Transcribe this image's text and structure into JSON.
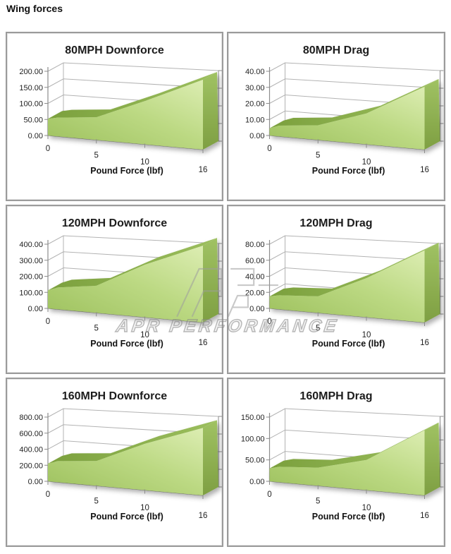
{
  "page": {
    "title": "Wing forces"
  },
  "watermark": {
    "text": "APR PERFORMANCE"
  },
  "colors": {
    "area_light": "#dcedb2",
    "area_mid": "#bcd983",
    "area_dark": "#9cc05c",
    "ridge_dark": "#7ba03d",
    "ridge_light": "#9cbf5e",
    "cap_top": "#a0c263",
    "cap_bottom": "#7e9f42",
    "grid_gray": "#b3b3b3",
    "axis_gray": "#8c8c8c",
    "text": "#1f1f1f",
    "panel_border": "#9b9b9b",
    "watermark_gray": "#9e9e9e"
  },
  "chart_data": [
    {
      "type": "area",
      "title": "80MPH Downforce",
      "xlabel": "Pound Force (lbf)",
      "x": [
        0,
        1,
        5,
        10,
        16
      ],
      "values": [
        52,
        57,
        62,
        105,
        150
      ],
      "xlim": [
        0,
        16
      ],
      "ylim": [
        0,
        200
      ],
      "ystep": 50,
      "xticks": [
        0,
        5,
        10,
        16
      ],
      "xtick_labels": [
        "0",
        "5",
        "10",
        "16"
      ],
      "ytick_labels": [
        "0.00",
        "50.00",
        "100.00",
        "150.00",
        "200.00"
      ],
      "grid": true,
      "legend": false
    },
    {
      "type": "area",
      "title": "80MPH Drag",
      "xlabel": "Pound Force (lbf)",
      "x": [
        0,
        1,
        5,
        10,
        16
      ],
      "values": [
        4.5,
        6.5,
        8,
        15,
        27
      ],
      "xlim": [
        0,
        16
      ],
      "ylim": [
        0,
        40
      ],
      "ystep": 10,
      "xticks": [
        0,
        5,
        10,
        16
      ],
      "xtick_labels": [
        "0",
        "5",
        "10",
        "16"
      ],
      "ytick_labels": [
        "0.00",
        "10.00",
        "20.00",
        "30.00",
        "40.00"
      ],
      "grid": true,
      "legend": false
    },
    {
      "type": "area",
      "title": "120MPH Downforce",
      "xlabel": "Pound Force (lbf)",
      "x": [
        0,
        1,
        5,
        10,
        16
      ],
      "values": [
        112,
        132,
        148,
        255,
        330
      ],
      "xlim": [
        0,
        16
      ],
      "ylim": [
        0,
        400
      ],
      "ystep": 100,
      "xticks": [
        0,
        5,
        10,
        16
      ],
      "xtick_labels": [
        "0",
        "5",
        "10",
        "16"
      ],
      "ytick_labels": [
        "0.00",
        "100.00",
        "200.00",
        "300.00",
        "400.00"
      ],
      "grid": true,
      "legend": false
    },
    {
      "type": "area",
      "title": "120MPH Drag",
      "xlabel": "Pound Force (lbf)",
      "x": [
        0,
        1,
        5,
        10,
        16
      ],
      "values": [
        15,
        17,
        18,
        38,
        62
      ],
      "xlim": [
        0,
        16
      ],
      "ylim": [
        0,
        80
      ],
      "ystep": 20,
      "xticks": [
        0,
        5,
        10,
        16
      ],
      "xtick_labels": [
        "0",
        "5",
        "10",
        "16"
      ],
      "ytick_labels": [
        "0.00",
        "20.00",
        "40.00",
        "60.00",
        "80.00"
      ],
      "grid": true,
      "legend": false
    },
    {
      "type": "area",
      "title": "160MPH Downforce",
      "xlabel": "Pound Force (lbf)",
      "x": [
        0,
        1,
        5,
        10,
        16
      ],
      "values": [
        220,
        255,
        270,
        450,
        580
      ],
      "xlim": [
        0,
        16
      ],
      "ylim": [
        0,
        800
      ],
      "ystep": 200,
      "xticks": [
        0,
        5,
        10,
        16
      ],
      "xtick_labels": [
        "0",
        "5",
        "10",
        "16"
      ],
      "ytick_labels": [
        "0.00",
        "200.00",
        "400.00",
        "600.00",
        "800.00"
      ],
      "grid": true,
      "legend": false
    },
    {
      "type": "area",
      "title": "160MPH Drag",
      "xlabel": "Pound Force (lbf)",
      "x": [
        0,
        1,
        5,
        10,
        16
      ],
      "values": [
        30,
        35,
        37,
        55,
        105
      ],
      "xlim": [
        0,
        16
      ],
      "ylim": [
        0,
        150
      ],
      "ystep": 50,
      "xticks": [
        0,
        5,
        10,
        16
      ],
      "xtick_labels": [
        "0",
        "5",
        "10",
        "16"
      ],
      "ytick_labels": [
        "0.00",
        "50.00",
        "100.00",
        "150.00"
      ],
      "grid": true,
      "legend": false
    }
  ]
}
